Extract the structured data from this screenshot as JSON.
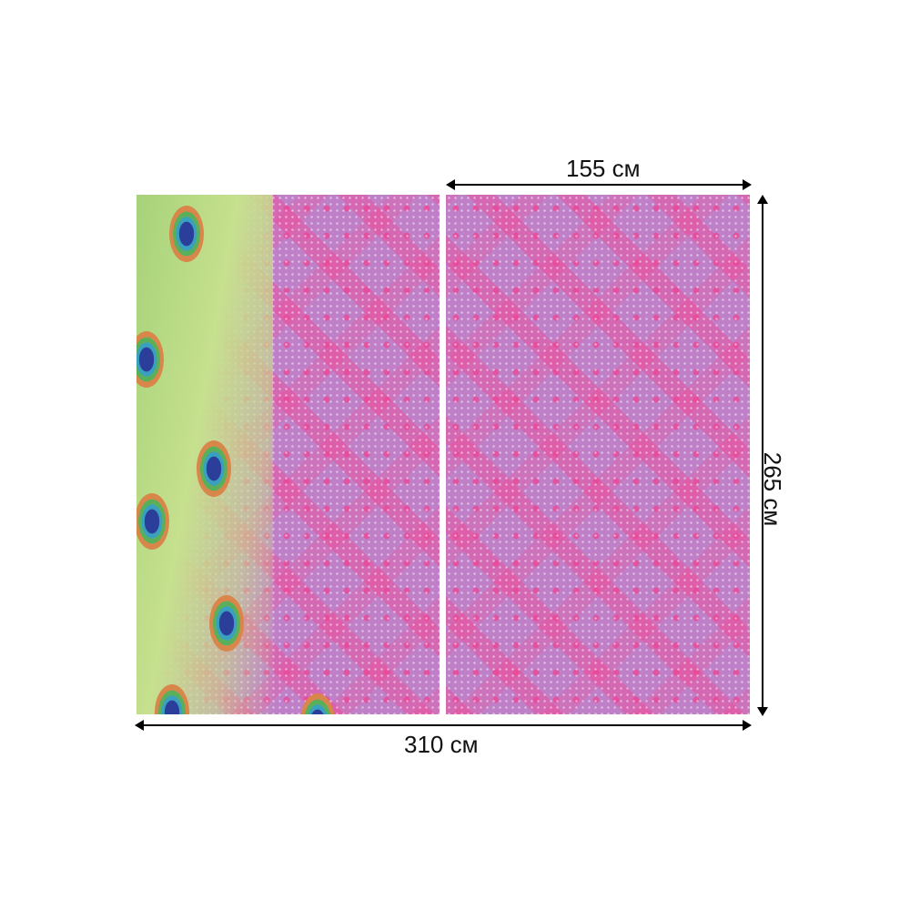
{
  "dimensions": {
    "panel_width": "155 см",
    "height": "265 см",
    "total_width": "310 см"
  },
  "colors": {
    "fabric": "#c48ac8",
    "pattern": "#e64a9c",
    "feather": "#a6d27a"
  }
}
